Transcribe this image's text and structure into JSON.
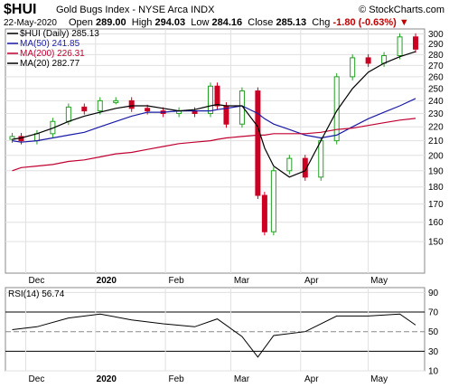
{
  "header": {
    "symbol": "$HUI",
    "name": "Gold Bugs Index - NYSE Arca  INDX",
    "credit": "© StockCharts.com",
    "date": "22-May-2020",
    "open_label": "Open",
    "open": "289.00",
    "high_label": "High",
    "high": "294.03",
    "low_label": "Low",
    "low": "284.16",
    "close_label": "Close",
    "close": "285.13",
    "chg_label": "Chg",
    "chg": "-1.80 (-0.63%)",
    "chg_arrow": "▼"
  },
  "legend": [
    {
      "text": "$HUI (Daily) 285.13",
      "color": "#000000"
    },
    {
      "text": "MA(50) 241.85",
      "color": "#1a1aa6"
    },
    {
      "text": "MA(200) 226.31",
      "color": "#c00030"
    },
    {
      "text": "MA(20) 282.77",
      "color": "#000000"
    }
  ],
  "rsi_label": "RSI(14) 56.74",
  "colors": {
    "up": "#22a022",
    "down": "#cc0022",
    "ma50": "#1a1aa6",
    "ma200": "#c00030",
    "ma20": "#000000",
    "rsi": "#000000"
  },
  "chart_data": [
    {
      "type": "line",
      "title": "$HUI (Daily)",
      "x": [
        "2019-11-25",
        "2019-11-29",
        "2019-12-06",
        "2019-12-13",
        "2019-12-20",
        "2019-12-27",
        "2020-01-03",
        "2020-01-10",
        "2020-01-17",
        "2020-01-24",
        "2020-01-31",
        "2020-02-07",
        "2020-02-14",
        "2020-02-21",
        "2020-02-24",
        "2020-02-28",
        "2020-03-06",
        "2020-03-13",
        "2020-03-16",
        "2020-03-20",
        "2020-03-27",
        "2020-04-03",
        "2020-04-10",
        "2020-04-17",
        "2020-04-24",
        "2020-05-01",
        "2020-05-08",
        "2020-05-15",
        "2020-05-22"
      ],
      "series": [
        {
          "name": "$HUI (Daily)",
          "values": [
            213,
            210,
            215,
            224,
            235,
            232,
            240,
            240,
            234,
            232,
            230,
            232,
            230,
            252,
            236,
            222,
            248,
            175,
            155,
            190,
            198,
            186,
            210,
            260,
            277,
            272,
            279,
            297,
            285.13
          ]
        },
        {
          "name": "MA(50)",
          "values": [
            210,
            209,
            210,
            212,
            214,
            216,
            220,
            224,
            228,
            231,
            231,
            232,
            232,
            232,
            233,
            234,
            236,
            230,
            226,
            222,
            218,
            214,
            212,
            214,
            220,
            226,
            231,
            236,
            241.85
          ]
        },
        {
          "name": "MA(200)",
          "values": [
            190,
            192,
            193,
            194,
            196,
            197,
            199,
            201,
            202,
            204,
            206,
            208,
            209,
            210,
            211,
            212,
            213,
            214,
            214,
            215,
            215,
            215,
            216,
            218,
            219,
            221,
            223,
            225,
            226.31
          ]
        },
        {
          "name": "MA(20)",
          "values": [
            211,
            212,
            215,
            219,
            224,
            228,
            231,
            234,
            236,
            236,
            234,
            232,
            233,
            236,
            237,
            236,
            236,
            220,
            205,
            193,
            186,
            190,
            210,
            232,
            250,
            264,
            272,
            278,
            282.77
          ]
        }
      ],
      "ylim": [
        135,
        305
      ],
      "y_ticks": [
        150,
        160,
        170,
        180,
        190,
        200,
        210,
        220,
        230,
        240,
        250,
        260,
        270,
        280,
        290,
        300
      ],
      "x_ticks": [
        "Dec",
        "2020",
        "Feb",
        "Mar",
        "Apr",
        "May"
      ],
      "scale": "log",
      "grid": true,
      "legend_position": "top-left"
    },
    {
      "type": "line",
      "title": "RSI(14)",
      "x": [
        "2019-11-25",
        "2019-12-06",
        "2019-12-20",
        "2020-01-03",
        "2020-01-17",
        "2020-01-31",
        "2020-02-14",
        "2020-02-24",
        "2020-03-06",
        "2020-03-13",
        "2020-03-20",
        "2020-04-03",
        "2020-04-17",
        "2020-05-01",
        "2020-05-15",
        "2020-05-22"
      ],
      "series": [
        {
          "name": "RSI(14)",
          "values": [
            52,
            55,
            64,
            68,
            62,
            58,
            55,
            63,
            45,
            24,
            46,
            50,
            66,
            66,
            68,
            56.74
          ]
        }
      ],
      "ylim": [
        10,
        95
      ],
      "y_ticks": [
        10,
        30,
        50,
        70,
        90
      ],
      "reference_lines": [
        30,
        70
      ],
      "grid": true
    }
  ]
}
